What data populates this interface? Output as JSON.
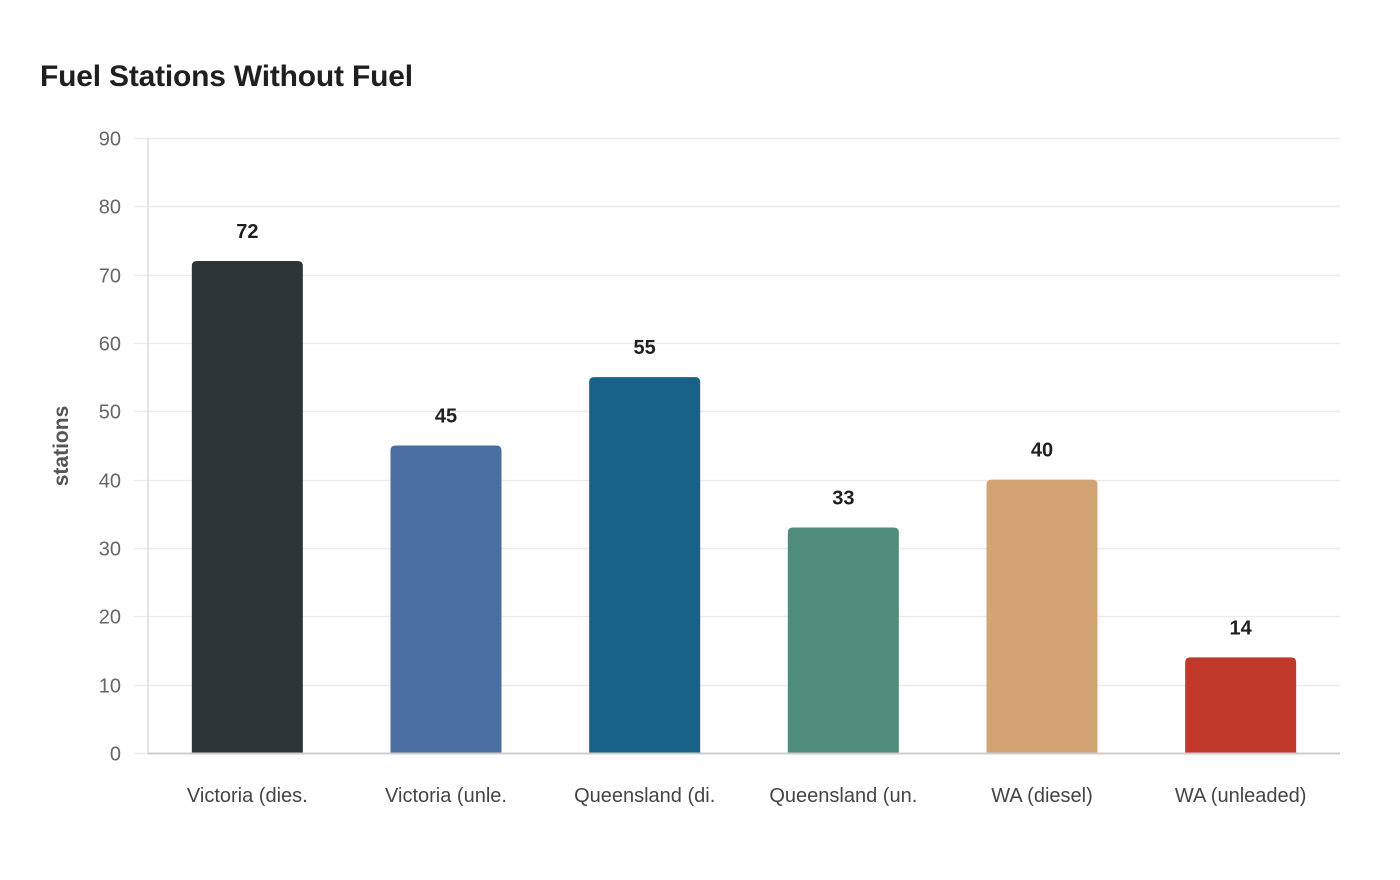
{
  "chart_data": {
    "type": "bar",
    "title": "Fuel Stations Without Fuel",
    "xlabel": "",
    "ylabel": "stations",
    "ylim": [
      0,
      90
    ],
    "yticks": [
      0,
      10,
      20,
      30,
      40,
      50,
      60,
      70,
      80,
      90
    ],
    "grid": true,
    "legend": null,
    "categories": [
      "Victoria (dies.",
      "Victoria (unle.",
      "Queensland (di.",
      "Queensland (un.",
      "WA (diesel)",
      "WA (unleaded)"
    ],
    "values": [
      72,
      45,
      55,
      33,
      40,
      14
    ],
    "colors": [
      "#2e3538",
      "#4a6ea1",
      "#186287",
      "#4f8c7a",
      "#d3a473",
      "#c0392b"
    ],
    "data_labels": [
      "72",
      "45",
      "55",
      "33",
      "40",
      "14"
    ]
  }
}
